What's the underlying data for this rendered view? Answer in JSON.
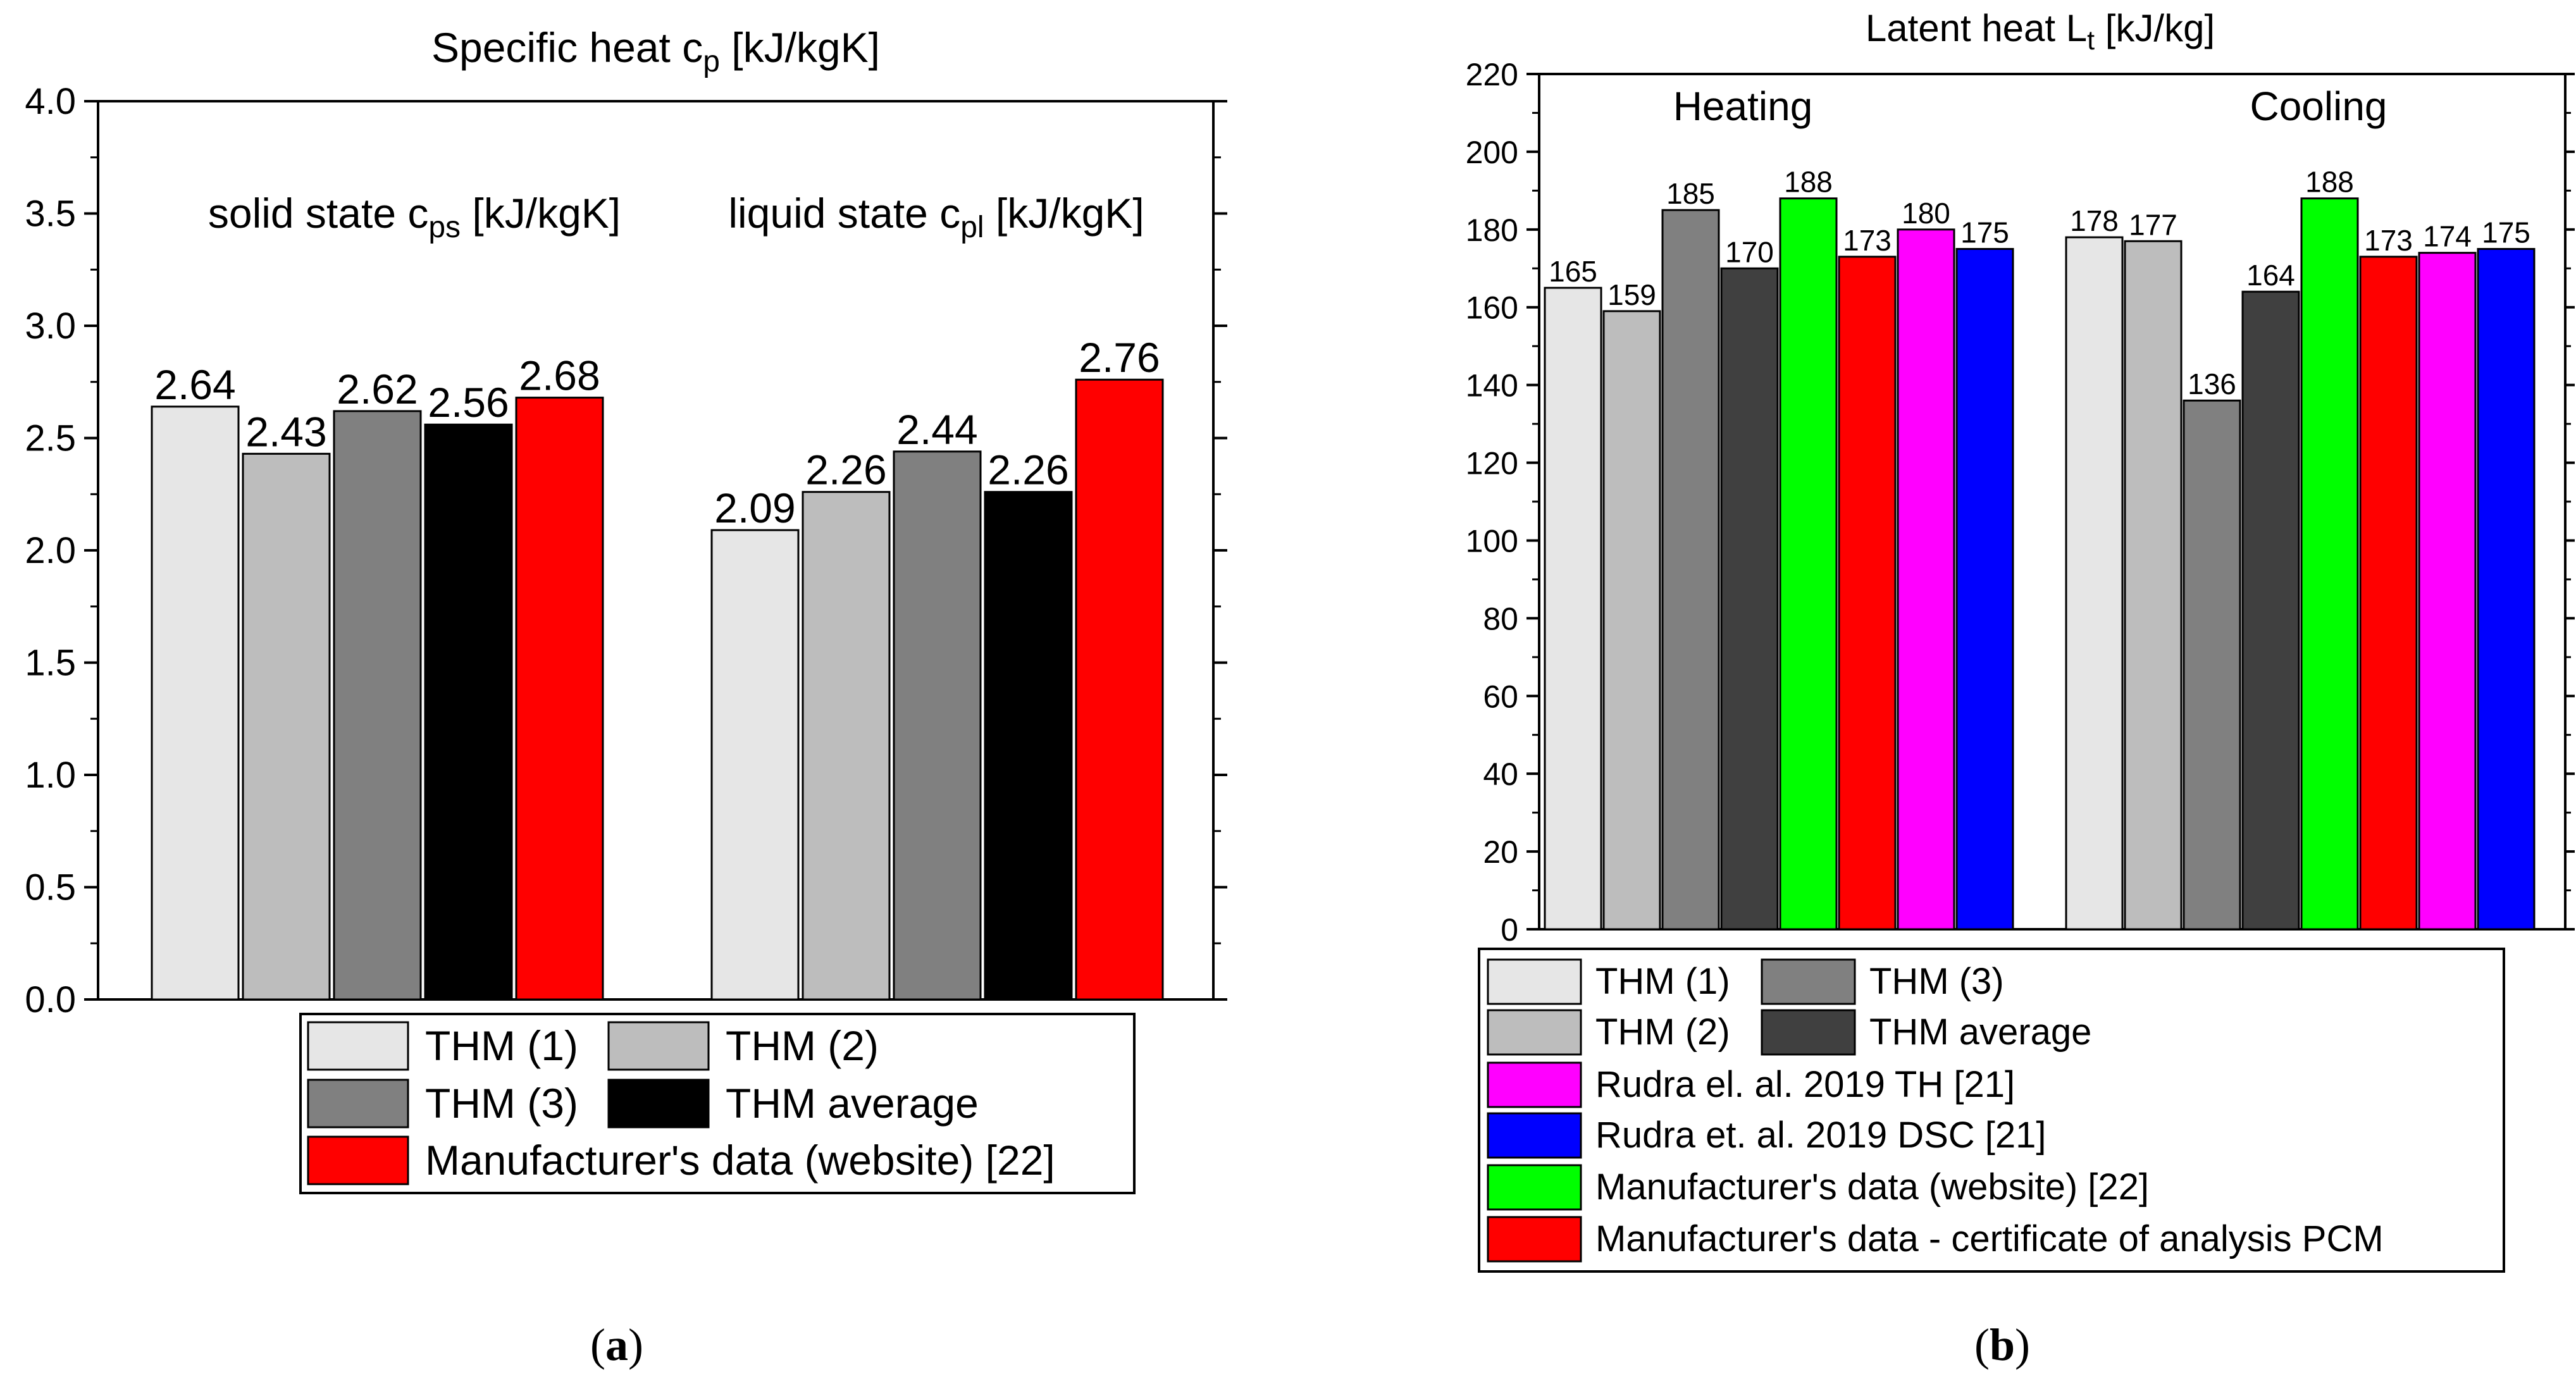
{
  "chart_data": [
    {
      "type": "bar",
      "panel_label": "a",
      "title": "Specific heat c",
      "title_sub": "p",
      "title_unit": " [kJ/kgK]",
      "ylim": [
        0,
        4.0
      ],
      "yticks": [
        "0.0",
        "0.5",
        "1.0",
        "1.5",
        "2.0",
        "2.5",
        "3.0",
        "3.5",
        "4.0"
      ],
      "groups": [
        {
          "label": "solid state c",
          "label_sub": "ps",
          "label_unit": " [kJ/kgK]"
        },
        {
          "label": "liquid state c",
          "label_sub": "pl",
          "label_unit": " [kJ/kgK]"
        }
      ],
      "series": [
        {
          "name": "THM (1)",
          "color": "#e6e6e6",
          "values": [
            2.64,
            2.09
          ],
          "labels": [
            "2.64",
            "2.09"
          ]
        },
        {
          "name": "THM (2)",
          "color": "#bdbdbd",
          "values": [
            2.43,
            2.26
          ],
          "labels": [
            "2.43",
            "2.26"
          ]
        },
        {
          "name": "THM (3)",
          "color": "#808080",
          "values": [
            2.62,
            2.44
          ],
          "labels": [
            "2.62",
            "2.44"
          ]
        },
        {
          "name": "THM average",
          "color": "#000000",
          "values": [
            2.56,
            2.26
          ],
          "labels": [
            "2.56",
            "2.26"
          ]
        },
        {
          "name": "Manufacturer's data (website) [22]",
          "color": "#ff0000",
          "values": [
            2.68,
            2.76
          ],
          "labels": [
            "2.68",
            "2.76"
          ]
        }
      ],
      "legend_position": "bottom"
    },
    {
      "type": "bar",
      "panel_label": "b",
      "title": "Latent heat L",
      "title_sub": "t",
      "title_unit": " [kJ/kg]",
      "ylim": [
        0,
        220
      ],
      "yticks": [
        "0",
        "20",
        "40",
        "60",
        "80",
        "100",
        "120",
        "140",
        "160",
        "180",
        "200",
        "220"
      ],
      "groups": [
        {
          "label": "Heating"
        },
        {
          "label": "Cooling"
        }
      ],
      "series": [
        {
          "name": "THM (1)",
          "color": "#e6e6e6",
          "values": [
            165,
            178
          ],
          "labels": [
            "165",
            "178"
          ]
        },
        {
          "name": "THM (2)",
          "color": "#bdbdbd",
          "values": [
            159,
            177
          ],
          "labels": [
            "159",
            "177"
          ]
        },
        {
          "name": "THM (3)",
          "color": "#808080",
          "values": [
            185,
            136
          ],
          "labels": [
            "185",
            "136"
          ]
        },
        {
          "name": "THM average",
          "color": "#404040",
          "values": [
            170,
            164
          ],
          "labels": [
            "170",
            "164"
          ]
        },
        {
          "name": "Manufacturer's data (website) [22]",
          "color": "#00ff00",
          "values": [
            188,
            188
          ],
          "labels": [
            "188",
            "188"
          ]
        },
        {
          "name": "Manufacturer's data - certificate of analysis PCM",
          "color": "#ff0000",
          "values": [
            173,
            173
          ],
          "labels": [
            "173",
            "173"
          ]
        },
        {
          "name": "Rudra el. al. 2019 TH [21]",
          "color": "#ff00ff",
          "values": [
            180,
            174
          ],
          "labels": [
            "180",
            "174"
          ]
        },
        {
          "name": "Rudra et. al. 2019 DSC [21]",
          "color": "#0000ff",
          "values": [
            175,
            175
          ],
          "labels": [
            "175",
            "175"
          ]
        }
      ],
      "legend_position": "bottom"
    }
  ]
}
